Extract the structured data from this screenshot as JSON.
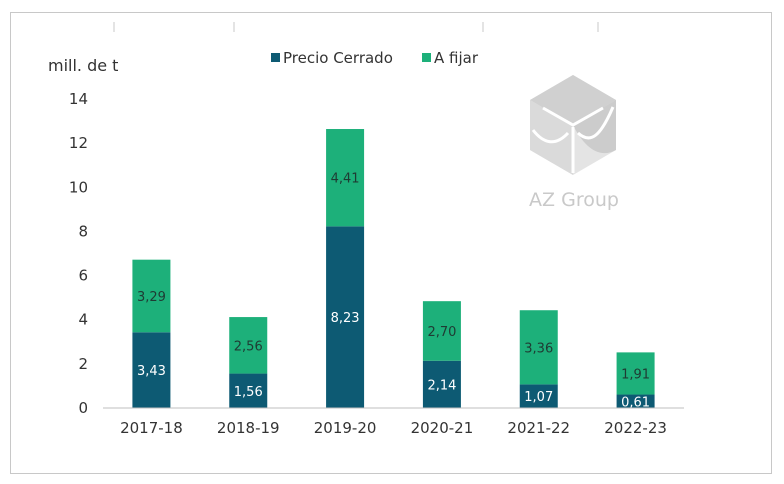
{
  "chart_data": {
    "type": "bar",
    "stacked": true,
    "categories": [
      "2017-18",
      "2018-19",
      "2019-20",
      "2020-21",
      "2021-22",
      "2022-23"
    ],
    "series": [
      {
        "name": "Precio Cerrado",
        "color": "#0d5a73",
        "values": [
          3.43,
          1.56,
          8.23,
          2.14,
          1.07,
          0.61
        ],
        "labels": [
          "3,43",
          "1,56",
          "8,23",
          "2,14",
          "1,07",
          "0,61"
        ]
      },
      {
        "name": "A fijar",
        "color": "#1db07a",
        "values": [
          3.29,
          2.56,
          4.41,
          2.7,
          3.36,
          1.91
        ],
        "labels": [
          "3,29",
          "2,56",
          "4,41",
          "2,70",
          "3,36",
          "1,91"
        ]
      }
    ],
    "ylabel": "mill. de t",
    "ylim": [
      0,
      14
    ],
    "yticks": [
      "0",
      "2",
      "4",
      "6",
      "8",
      "10",
      "12",
      "14"
    ],
    "legend_position": "top-center",
    "grid": false
  },
  "watermark": {
    "text": "AZ Group"
  }
}
